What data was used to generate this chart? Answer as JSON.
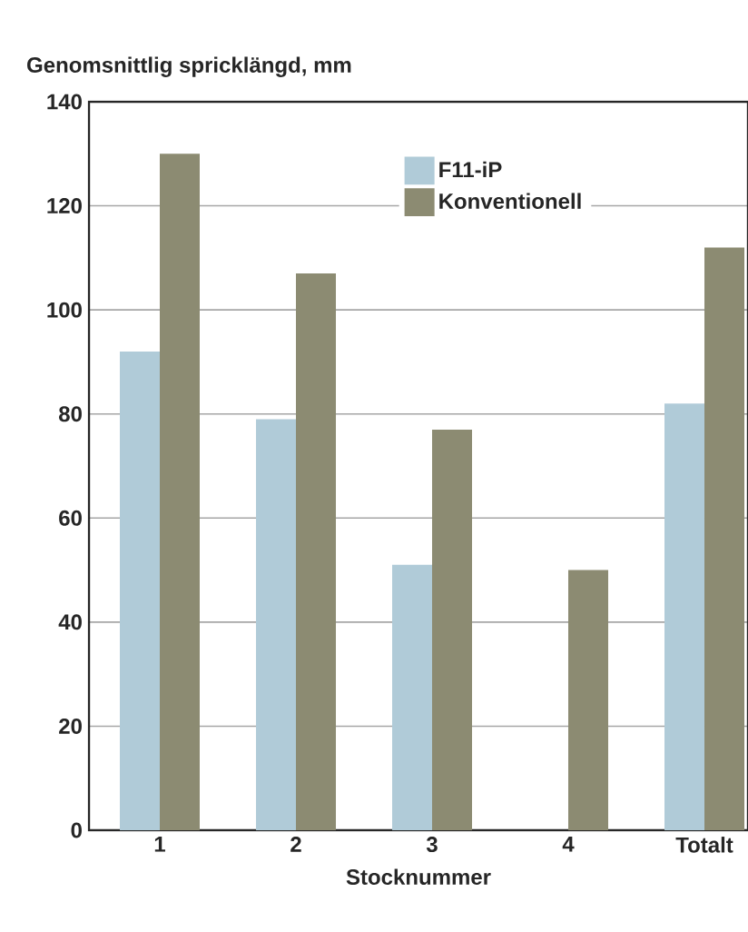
{
  "chart_data": {
    "type": "bar",
    "ylabel": "Genomsnittlig spricklängd, mm",
    "xlabel": "Stocknummer",
    "categories": [
      "1",
      "2",
      "3",
      "4",
      "Totalt"
    ],
    "series": [
      {
        "name": "F11-iP",
        "color": "#b0cbd8",
        "values": [
          92,
          79,
          51,
          null,
          82
        ]
      },
      {
        "name": "Konventionell",
        "color": "#8c8b72",
        "values": [
          130,
          107,
          77,
          50,
          112
        ]
      }
    ],
    "ylim": [
      0,
      140
    ],
    "yticks": [
      0,
      20,
      40,
      60,
      80,
      100,
      120,
      140
    ],
    "grid": "y",
    "legend": "top right"
  }
}
